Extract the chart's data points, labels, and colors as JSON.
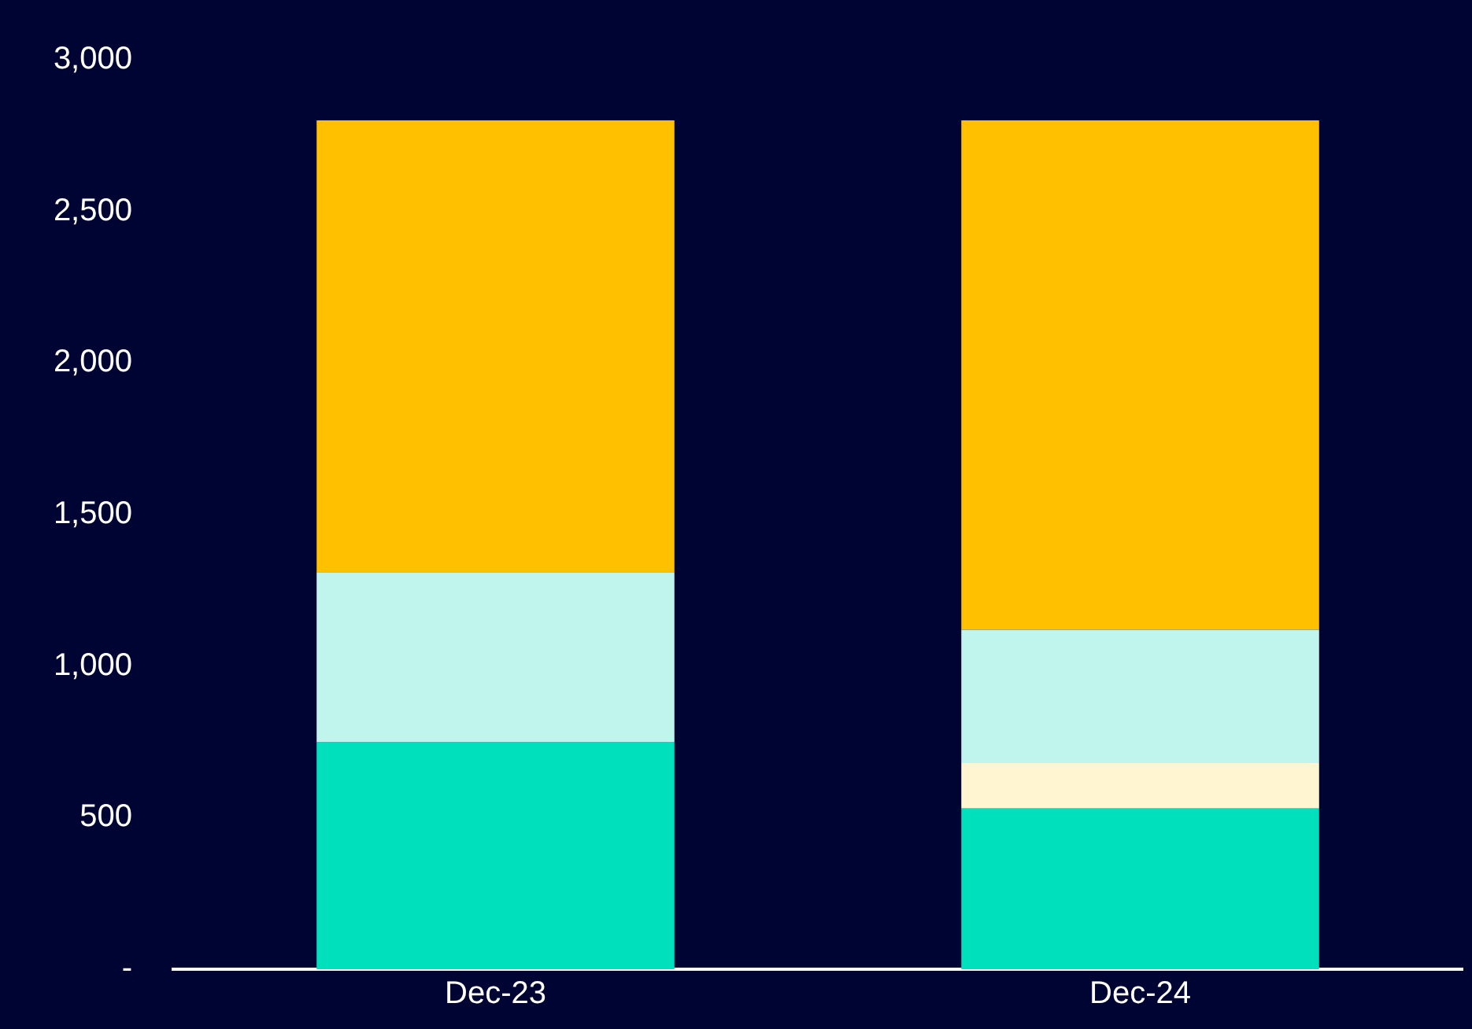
{
  "chart_data": {
    "type": "bar",
    "stacked": true,
    "categories": [
      "Dec-23",
      "Dec-24"
    ],
    "series": [
      {
        "color": "#00e0bc",
        "values": [
          750,
          530
        ]
      },
      {
        "color": "#fff5d1",
        "values": [
          0,
          150
        ]
      },
      {
        "color": "#bff5ec",
        "values": [
          560,
          440
        ]
      },
      {
        "color": "#ffc000",
        "values": [
          1490,
          1680
        ]
      }
    ],
    "ylim": [
      0,
      3000
    ],
    "yticks": [
      {
        "value": 0,
        "label": "-"
      },
      500,
      {
        "value": 1000,
        "label": "1,000"
      },
      {
        "value": 1500,
        "label": "1,500"
      },
      {
        "value": 2000,
        "label": "2,000"
      },
      {
        "value": 2500,
        "label": "2,500"
      },
      {
        "value": 3000,
        "label": "3,000"
      }
    ],
    "grid": false,
    "legend": false
  }
}
